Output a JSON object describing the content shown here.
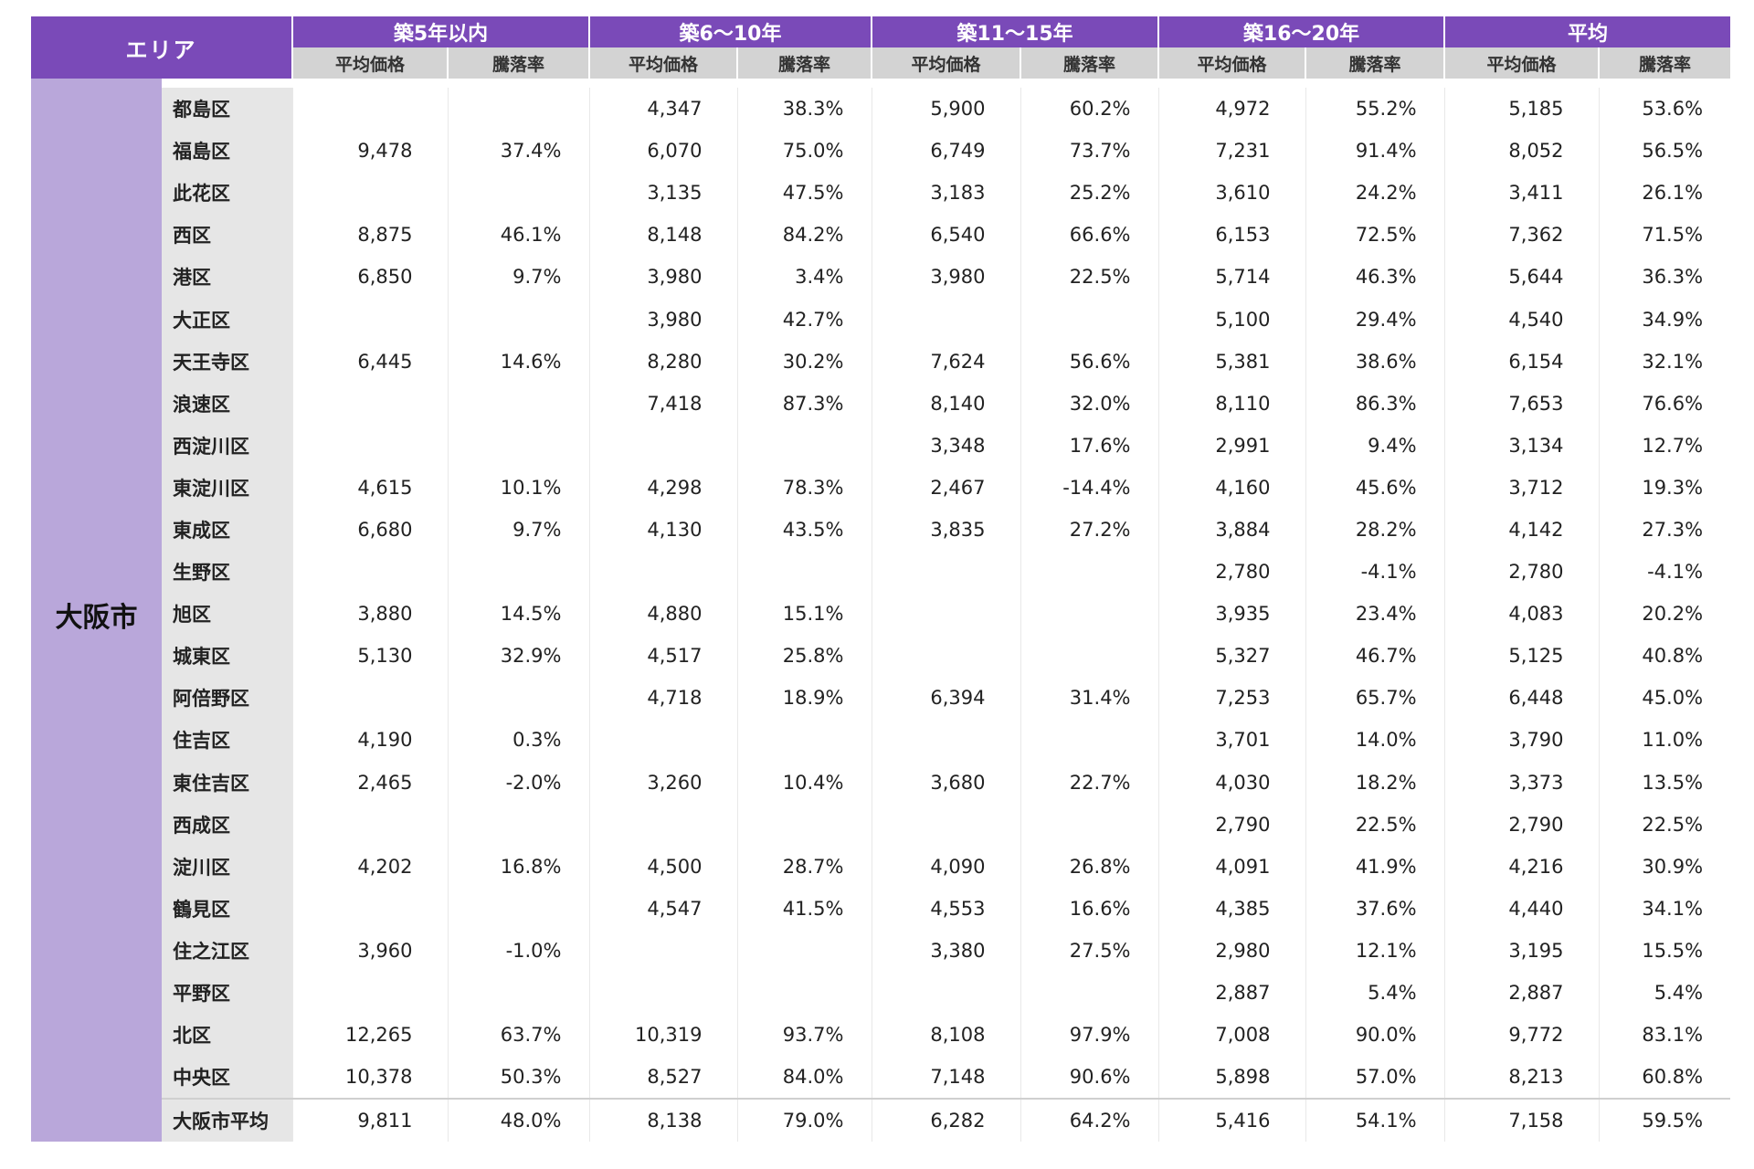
{
  "header": {
    "area_label": "エリア",
    "groups": [
      "築5年以内",
      "築6～10年",
      "築11～15年",
      "築16～20年",
      "平均"
    ],
    "sub_price": "平均価格",
    "sub_rate": "騰落率"
  },
  "area_name": "大阪市",
  "rows": [
    {
      "ward": "都島区",
      "v": [
        "",
        "",
        "4,347",
        "38.3%",
        "5,900",
        "60.2%",
        "4,972",
        "55.2%",
        "5,185",
        "53.6%"
      ]
    },
    {
      "ward": "福島区",
      "v": [
        "9,478",
        "37.4%",
        "6,070",
        "75.0%",
        "6,749",
        "73.7%",
        "7,231",
        "91.4%",
        "8,052",
        "56.5%"
      ]
    },
    {
      "ward": "此花区",
      "v": [
        "",
        "",
        "3,135",
        "47.5%",
        "3,183",
        "25.2%",
        "3,610",
        "24.2%",
        "3,411",
        "26.1%"
      ]
    },
    {
      "ward": "西区",
      "v": [
        "8,875",
        "46.1%",
        "8,148",
        "84.2%",
        "6,540",
        "66.6%",
        "6,153",
        "72.5%",
        "7,362",
        "71.5%"
      ]
    },
    {
      "ward": "港区",
      "v": [
        "6,850",
        "9.7%",
        "3,980",
        "3.4%",
        "3,980",
        "22.5%",
        "5,714",
        "46.3%",
        "5,644",
        "36.3%"
      ]
    },
    {
      "ward": "大正区",
      "v": [
        "",
        "",
        "3,980",
        "42.7%",
        "",
        "",
        "5,100",
        "29.4%",
        "4,540",
        "34.9%"
      ]
    },
    {
      "ward": "天王寺区",
      "v": [
        "6,445",
        "14.6%",
        "8,280",
        "30.2%",
        "7,624",
        "56.6%",
        "5,381",
        "38.6%",
        "6,154",
        "32.1%"
      ]
    },
    {
      "ward": "浪速区",
      "v": [
        "",
        "",
        "7,418",
        "87.3%",
        "8,140",
        "32.0%",
        "8,110",
        "86.3%",
        "7,653",
        "76.6%"
      ]
    },
    {
      "ward": "西淀川区",
      "v": [
        "",
        "",
        "",
        "",
        "3,348",
        "17.6%",
        "2,991",
        "9.4%",
        "3,134",
        "12.7%"
      ]
    },
    {
      "ward": "東淀川区",
      "v": [
        "4,615",
        "10.1%",
        "4,298",
        "78.3%",
        "2,467",
        "-14.4%",
        "4,160",
        "45.6%",
        "3,712",
        "19.3%"
      ]
    },
    {
      "ward": "東成区",
      "v": [
        "6,680",
        "9.7%",
        "4,130",
        "43.5%",
        "3,835",
        "27.2%",
        "3,884",
        "28.2%",
        "4,142",
        "27.3%"
      ]
    },
    {
      "ward": "生野区",
      "v": [
        "",
        "",
        "",
        "",
        "",
        "",
        "2,780",
        "-4.1%",
        "2,780",
        "-4.1%"
      ]
    },
    {
      "ward": "旭区",
      "v": [
        "3,880",
        "14.5%",
        "4,880",
        "15.1%",
        "",
        "",
        "3,935",
        "23.4%",
        "4,083",
        "20.2%"
      ]
    },
    {
      "ward": "城東区",
      "v": [
        "5,130",
        "32.9%",
        "4,517",
        "25.8%",
        "",
        "",
        "5,327",
        "46.7%",
        "5,125",
        "40.8%"
      ]
    },
    {
      "ward": "阿倍野区",
      "v": [
        "",
        "",
        "4,718",
        "18.9%",
        "6,394",
        "31.4%",
        "7,253",
        "65.7%",
        "6,448",
        "45.0%"
      ]
    },
    {
      "ward": "住吉区",
      "v": [
        "4,190",
        "0.3%",
        "",
        "",
        "",
        "",
        "3,701",
        "14.0%",
        "3,790",
        "11.0%"
      ]
    },
    {
      "ward": "東住吉区",
      "v": [
        "2,465",
        "-2.0%",
        "3,260",
        "10.4%",
        "3,680",
        "22.7%",
        "4,030",
        "18.2%",
        "3,373",
        "13.5%"
      ]
    },
    {
      "ward": "西成区",
      "v": [
        "",
        "",
        "",
        "",
        "",
        "",
        "2,790",
        "22.5%",
        "2,790",
        "22.5%"
      ]
    },
    {
      "ward": "淀川区",
      "v": [
        "4,202",
        "16.8%",
        "4,500",
        "28.7%",
        "4,090",
        "26.8%",
        "4,091",
        "41.9%",
        "4,216",
        "30.9%"
      ]
    },
    {
      "ward": "鶴見区",
      "v": [
        "",
        "",
        "4,547",
        "41.5%",
        "4,553",
        "16.6%",
        "4,385",
        "37.6%",
        "4,440",
        "34.1%"
      ]
    },
    {
      "ward": "住之江区",
      "v": [
        "3,960",
        "-1.0%",
        "",
        "",
        "3,380",
        "27.5%",
        "2,980",
        "12.1%",
        "3,195",
        "15.5%"
      ]
    },
    {
      "ward": "平野区",
      "v": [
        "",
        "",
        "",
        "",
        "",
        "",
        "2,887",
        "5.4%",
        "2,887",
        "5.4%"
      ]
    },
    {
      "ward": "北区",
      "v": [
        "12,265",
        "63.7%",
        "10,319",
        "93.7%",
        "8,108",
        "97.9%",
        "7,008",
        "90.0%",
        "9,772",
        "83.1%"
      ]
    },
    {
      "ward": "中央区",
      "v": [
        "10,378",
        "50.3%",
        "8,527",
        "84.0%",
        "7,148",
        "90.6%",
        "5,898",
        "57.0%",
        "8,213",
        "60.8%"
      ]
    }
  ],
  "average_row": {
    "ward": "大阪市平均",
    "v": [
      "9,811",
      "48.0%",
      "8,138",
      "79.0%",
      "6,282",
      "64.2%",
      "5,416",
      "54.1%",
      "7,158",
      "59.5%"
    ]
  }
}
